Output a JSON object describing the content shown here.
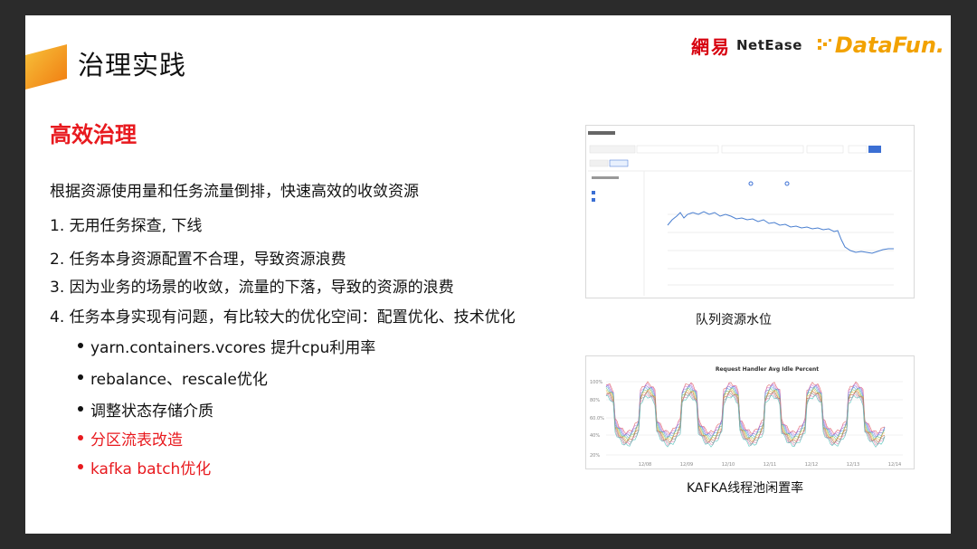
{
  "slide": {
    "title": "治理实践",
    "logos": {
      "netease_cn": "網易",
      "netease_en": "NetEase",
      "datafun": "DataFun."
    },
    "heading": "高效治理",
    "intro": "根据资源使用量和任务流量倒排，快速高效的收敛资源",
    "items": [
      "1. 无用任务探查, 下线",
      "2. 任务本身资源配置不合理，导致资源浪费",
      "3. 因为业务的场景的收敛，流量的下落，导致的资源的浪费",
      "4. 任务本身实现有问题，有比较大的优化空间：配置优化、技术优化"
    ],
    "bullets": [
      {
        "text": "yarn.containers.vcores 提升cpu利用率",
        "highlight": false
      },
      {
        "text": "rebalance、rescale优化",
        "highlight": false
      },
      {
        "text": "调整状态存储介质",
        "highlight": false
      },
      {
        "text": "分区流表改造",
        "highlight": true
      },
      {
        "text": "kafka batch优化",
        "highlight": true
      }
    ],
    "captions": {
      "queue": "队列资源水位",
      "kafka": "KAFKA线程池闲置率"
    }
  },
  "colors": {
    "accent_red": "#e8191e",
    "accent_orange": "#f7a21b",
    "netease_red": "#d7000f",
    "datafun_orange": "#f2a200",
    "chart_blue": "#4a7fd0"
  },
  "chart2": {
    "title": "Request Handler Avg Idle Percent",
    "y_ticks": [
      "100%",
      "80%",
      "60.0%",
      "40%",
      "20%"
    ],
    "x_ticks": [
      "12/08",
      "12/09",
      "12/10",
      "12/11",
      "12/12",
      "12/13",
      "12/14"
    ]
  }
}
